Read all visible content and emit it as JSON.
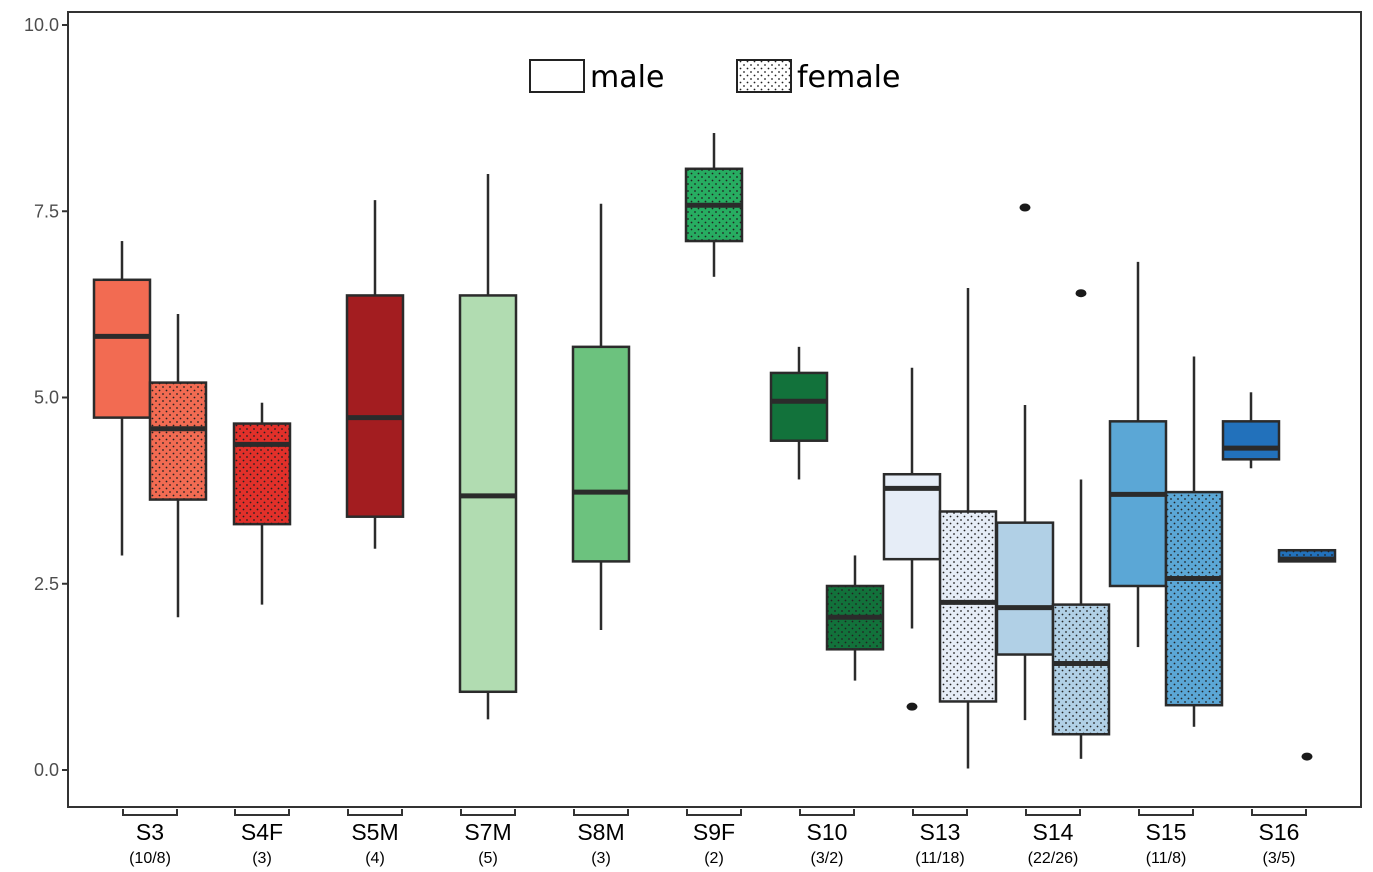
{
  "chart_data": {
    "type": "box",
    "ylim": [
      -0.4,
      10.1
    ],
    "yticks": [
      "0.0",
      "2.5",
      "5.0",
      "7.5",
      "10.0"
    ],
    "legend": {
      "placement": "top-center",
      "entries": [
        {
          "label": "male",
          "pattern": "plain"
        },
        {
          "label": "female",
          "pattern": "dotted"
        }
      ]
    },
    "groups": [
      {
        "label": "S3",
        "count": "(10/8)"
      },
      {
        "label": "S4F",
        "count": "(3)"
      },
      {
        "label": "S5M",
        "count": "(4)"
      },
      {
        "label": "S7M",
        "count": "(5)"
      },
      {
        "label": "S8M",
        "count": "(3)"
      },
      {
        "label": "S9F",
        "count": "(2)"
      },
      {
        "label": "S10",
        "count": "(3/2)"
      },
      {
        "label": "S13",
        "count": "(11/18)"
      },
      {
        "label": "S14",
        "count": "(22/26)"
      },
      {
        "label": "S15",
        "count": "(11/8)"
      },
      {
        "label": "S16",
        "count": "(3/5)"
      }
    ],
    "boxes": [
      {
        "group": 0,
        "sex": "male",
        "color": "#f26b52",
        "whisker_low": 2.88,
        "q1": 4.73,
        "median": 5.82,
        "q3": 6.58,
        "whisker_high": 7.1,
        "outliers": []
      },
      {
        "group": 0,
        "sex": "female",
        "color": "#f26b52",
        "whisker_low": 2.05,
        "q1": 3.63,
        "median": 4.58,
        "q3": 5.2,
        "whisker_high": 6.12,
        "outliers": []
      },
      {
        "group": 1,
        "sex": "female",
        "color": "#e2302a",
        "whisker_low": 2.22,
        "q1": 3.3,
        "median": 4.37,
        "q3": 4.65,
        "whisker_high": 4.93,
        "outliers": []
      },
      {
        "group": 2,
        "sex": "male",
        "color": "#a31d20",
        "whisker_low": 2.97,
        "q1": 3.4,
        "median": 4.73,
        "q3": 6.37,
        "whisker_high": 7.65,
        "outliers": []
      },
      {
        "group": 3,
        "sex": "male",
        "color": "#b1dcb1",
        "whisker_low": 0.68,
        "q1": 1.05,
        "median": 3.68,
        "q3": 6.37,
        "whisker_high": 8.0,
        "outliers": []
      },
      {
        "group": 4,
        "sex": "male",
        "color": "#6cc27e",
        "whisker_low": 1.88,
        "q1": 2.8,
        "median": 3.73,
        "q3": 5.68,
        "whisker_high": 7.6,
        "outliers": []
      },
      {
        "group": 5,
        "sex": "female",
        "color": "#27ad61",
        "whisker_low": 6.62,
        "q1": 7.1,
        "median": 7.58,
        "q3": 8.07,
        "whisker_high": 8.55,
        "outliers": []
      },
      {
        "group": 6,
        "sex": "male",
        "color": "#12723b",
        "whisker_low": 3.9,
        "q1": 4.42,
        "median": 4.95,
        "q3": 5.33,
        "whisker_high": 5.68,
        "outliers": []
      },
      {
        "group": 6,
        "sex": "female",
        "color": "#12723b",
        "whisker_low": 1.2,
        "q1": 1.62,
        "median": 2.05,
        "q3": 2.47,
        "whisker_high": 2.88,
        "outliers": []
      },
      {
        "group": 7,
        "sex": "male",
        "color": "#e6edf7",
        "whisker_low": 1.9,
        "q1": 2.83,
        "median": 3.78,
        "q3": 3.97,
        "whisker_high": 5.4,
        "outliers": [
          0.85
        ]
      },
      {
        "group": 7,
        "sex": "female",
        "color": "#e6edf7",
        "whisker_low": 0.02,
        "q1": 0.92,
        "median": 2.25,
        "q3": 3.47,
        "whisker_high": 6.47,
        "outliers": []
      },
      {
        "group": 8,
        "sex": "male",
        "color": "#b1d0e6",
        "whisker_low": 0.67,
        "q1": 1.55,
        "median": 2.18,
        "q3": 3.32,
        "whisker_high": 4.9,
        "outliers": [
          7.55
        ]
      },
      {
        "group": 8,
        "sex": "female",
        "color": "#b1d0e6",
        "whisker_low": 0.15,
        "q1": 0.48,
        "median": 1.43,
        "q3": 2.22,
        "whisker_high": 3.9,
        "outliers": [
          6.4
        ]
      },
      {
        "group": 9,
        "sex": "male",
        "color": "#5ba7d6",
        "whisker_low": 1.65,
        "q1": 2.47,
        "median": 3.7,
        "q3": 4.68,
        "whisker_high": 6.82,
        "outliers": []
      },
      {
        "group": 9,
        "sex": "female",
        "color": "#5ba7d6",
        "whisker_low": 0.58,
        "q1": 0.87,
        "median": 2.57,
        "q3": 3.73,
        "whisker_high": 5.55,
        "outliers": []
      },
      {
        "group": 10,
        "sex": "male",
        "color": "#2271bb",
        "whisker_low": 4.05,
        "q1": 4.17,
        "median": 4.32,
        "q3": 4.68,
        "whisker_high": 5.07,
        "outliers": []
      },
      {
        "group": 10,
        "sex": "female",
        "color": "#2271bb",
        "whisker_low": 2.8,
        "q1": 2.8,
        "median": 2.83,
        "q3": 2.95,
        "whisker_high": 2.95,
        "outliers": [
          0.18
        ]
      }
    ]
  }
}
